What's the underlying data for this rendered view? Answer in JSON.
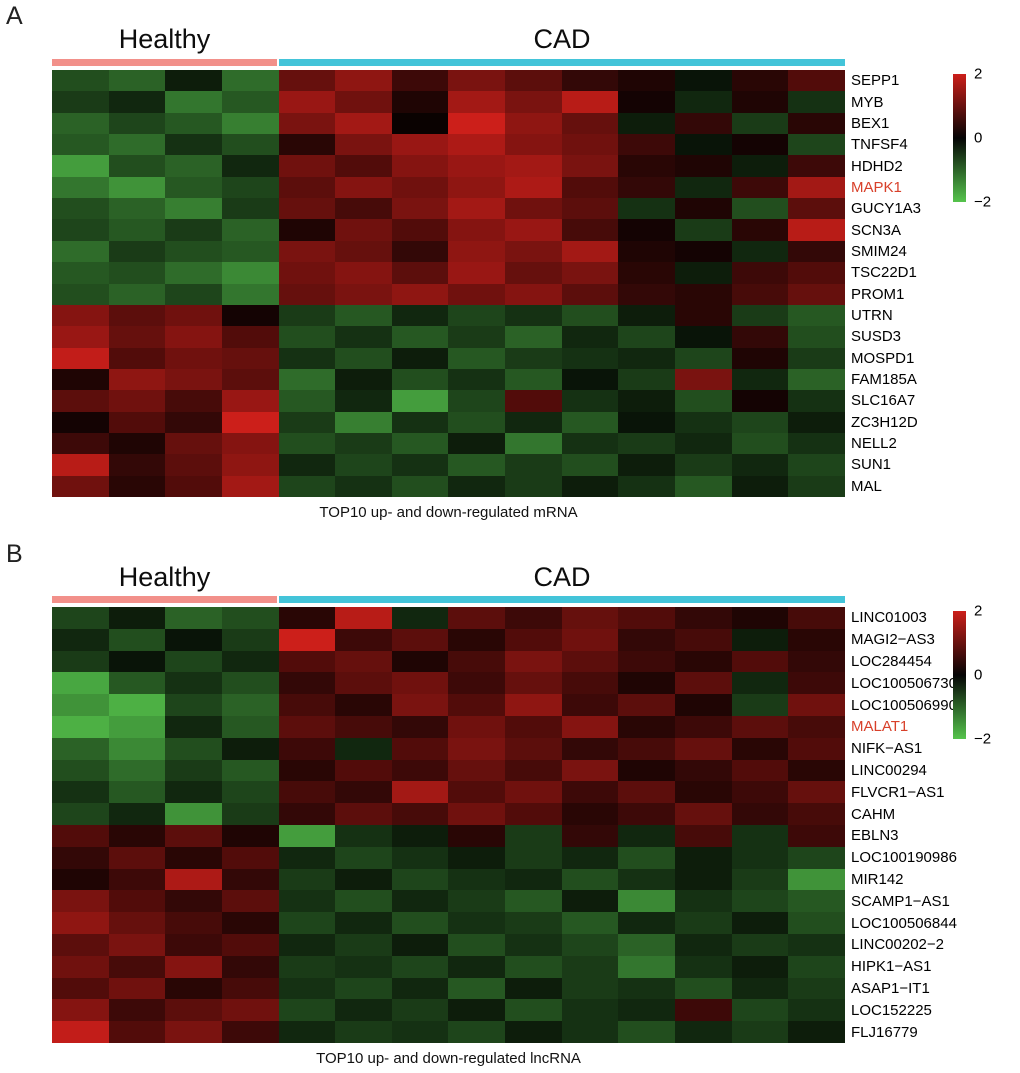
{
  "chart_data": [
    {
      "type": "heatmap",
      "panel_label": "A",
      "title": "TOP10 up- and down-regulated mRNA",
      "value_range": [
        -2,
        2
      ],
      "grid": {
        "rows": 20,
        "columns": 14
      },
      "groups": [
        {
          "name": "Healthy",
          "columns": 4,
          "bar_color": "#f2908a"
        },
        {
          "name": "CAD",
          "columns": 10,
          "bar_color": "#43c4d9"
        }
      ],
      "genes": [
        "SEPP1",
        "MYB",
        "BEX1",
        "TNFSF4",
        "HDHD2",
        "MAPK1",
        "GUCY1A3",
        "SCN3A",
        "SMIM24",
        "TSC22D1",
        "PROM1",
        "UTRN",
        "SUSD3",
        "MOSPD1",
        "FAM185A",
        "SLC16A7",
        "ZC3H12D",
        "NELL2",
        "SUN1",
        "MAL"
      ],
      "highlighted_gene": "MAPK1",
      "highlight_color": "#d8402a",
      "colorbar": {
        "ticks": [
          "2",
          "0",
          "−2"
        ],
        "high_color": "#cc1f1a",
        "mid_color": "#050505",
        "low_color": "#55c44c",
        "position": "right"
      },
      "values": [
        [
          -0.8,
          -1.0,
          -0.3,
          -1.1,
          1.0,
          1.4,
          0.6,
          1.2,
          0.9,
          0.5,
          0.3,
          -0.2,
          0.4,
          0.8
        ],
        [
          -0.6,
          -0.4,
          -1.2,
          -0.9,
          1.5,
          1.1,
          0.3,
          1.6,
          1.2,
          1.8,
          0.2,
          -0.4,
          0.3,
          -0.5
        ],
        [
          -1.0,
          -0.7,
          -0.9,
          -1.3,
          1.2,
          1.6,
          0.1,
          2.0,
          1.4,
          1.0,
          -0.3,
          0.5,
          -0.6,
          0.4
        ],
        [
          -0.9,
          -1.1,
          -0.5,
          -0.8,
          0.4,
          1.2,
          1.5,
          1.7,
          1.3,
          1.1,
          0.6,
          -0.2,
          0.2,
          -0.7
        ],
        [
          -1.6,
          -0.8,
          -1.0,
          -0.4,
          1.1,
          0.8,
          1.3,
          1.5,
          1.6,
          1.2,
          0.4,
          0.3,
          -0.3,
          0.6
        ],
        [
          -1.2,
          -1.5,
          -0.9,
          -0.7,
          0.9,
          1.3,
          1.1,
          1.4,
          1.7,
          0.8,
          0.5,
          -0.4,
          0.6,
          1.6
        ],
        [
          -0.8,
          -1.0,
          -1.3,
          -0.6,
          1.0,
          0.7,
          1.2,
          1.6,
          1.1,
          0.9,
          -0.5,
          0.3,
          -0.8,
          0.9
        ],
        [
          -0.7,
          -0.9,
          -0.6,
          -1.0,
          0.3,
          1.1,
          0.8,
          1.3,
          1.5,
          0.7,
          0.2,
          -0.6,
          0.4,
          1.8
        ],
        [
          -1.1,
          -0.6,
          -0.8,
          -0.9,
          1.2,
          1.0,
          0.5,
          1.4,
          1.2,
          1.6,
          0.3,
          0.2,
          -0.4,
          0.5
        ],
        [
          -0.9,
          -0.8,
          -1.1,
          -1.4,
          1.1,
          1.3,
          0.9,
          1.5,
          1.0,
          1.2,
          0.4,
          -0.3,
          0.6,
          0.8
        ],
        [
          -0.8,
          -1.0,
          -0.7,
          -1.2,
          1.0,
          1.2,
          1.4,
          1.1,
          1.3,
          0.9,
          0.5,
          0.4,
          0.7,
          1.0
        ],
        [
          1.3,
          0.9,
          1.1,
          0.2,
          -0.6,
          -0.9,
          -0.4,
          -0.7,
          -0.5,
          -0.8,
          -0.3,
          0.4,
          -0.6,
          -0.9
        ],
        [
          1.5,
          1.0,
          1.3,
          0.8,
          -0.8,
          -0.5,
          -0.9,
          -0.6,
          -1.0,
          -0.4,
          -0.7,
          -0.2,
          0.5,
          -0.8
        ],
        [
          1.9,
          0.8,
          1.1,
          1.0,
          -0.5,
          -0.8,
          -0.3,
          -0.9,
          -0.6,
          -0.5,
          -0.4,
          -0.7,
          0.3,
          -0.6
        ],
        [
          0.3,
          1.4,
          1.2,
          0.9,
          -1.1,
          -0.3,
          -0.8,
          -0.5,
          -0.9,
          -0.2,
          -0.6,
          1.2,
          -0.4,
          -1.0
        ],
        [
          0.9,
          1.1,
          0.7,
          1.5,
          -0.9,
          -0.4,
          -1.6,
          -0.7,
          0.8,
          -0.5,
          -0.3,
          -0.8,
          0.2,
          -0.5
        ],
        [
          0.2,
          0.8,
          0.5,
          2.0,
          -0.6,
          -1.3,
          -0.5,
          -0.8,
          -0.4,
          -0.9,
          -0.2,
          -0.5,
          -0.7,
          -0.3
        ],
        [
          0.6,
          0.3,
          1.0,
          1.3,
          -0.8,
          -0.6,
          -0.9,
          -0.3,
          -1.2,
          -0.5,
          -0.6,
          -0.4,
          -0.8,
          -0.5
        ],
        [
          1.8,
          0.5,
          0.9,
          1.4,
          -0.4,
          -0.7,
          -0.5,
          -0.9,
          -0.6,
          -0.8,
          -0.3,
          -0.6,
          -0.4,
          -0.7
        ],
        [
          1.1,
          0.4,
          0.8,
          1.6,
          -0.7,
          -0.5,
          -0.8,
          -0.4,
          -0.6,
          -0.3,
          -0.5,
          -0.9,
          -0.3,
          -0.6
        ]
      ]
    },
    {
      "type": "heatmap",
      "panel_label": "B",
      "title": "TOP10 up- and down-regulated lncRNA",
      "value_range": [
        -2,
        2
      ],
      "grid": {
        "rows": 20,
        "columns": 14
      },
      "groups": [
        {
          "name": "Healthy",
          "columns": 4,
          "bar_color": "#f2908a"
        },
        {
          "name": "CAD",
          "columns": 10,
          "bar_color": "#43c4d9"
        }
      ],
      "genes": [
        "LINC01003",
        "MAGI2−AS3",
        "LOC284454",
        "LOC100506730",
        "LOC100506990",
        "MALAT1",
        "NIFK−AS1",
        "LINC00294",
        "FLVCR1−AS1",
        "CAHM",
        "EBLN3",
        "LOC100190986",
        "MIR142",
        "SCAMP1−AS1",
        "LOC100506844",
        "LINC00202−2",
        "HIPK1−AS1",
        "ASAP1−IT1",
        "LOC152225",
        "FLJ16779"
      ],
      "highlighted_gene": "MALAT1",
      "highlight_color": "#d8402a",
      "colorbar": {
        "ticks": [
          "2",
          "0",
          "−2"
        ],
        "high_color": "#cc1f1a",
        "mid_color": "#050505",
        "low_color": "#55c44c",
        "position": "right"
      },
      "values": [
        [
          -0.7,
          -0.3,
          -1.0,
          -0.8,
          0.4,
          1.8,
          -0.4,
          0.9,
          0.6,
          1.0,
          0.8,
          0.5,
          0.3,
          0.7
        ],
        [
          -0.4,
          -0.8,
          -0.2,
          -0.6,
          2.0,
          0.6,
          0.9,
          0.4,
          0.8,
          1.1,
          0.5,
          0.7,
          -0.3,
          0.4
        ],
        [
          -0.6,
          -0.2,
          -0.7,
          -0.4,
          0.8,
          1.0,
          0.3,
          0.7,
          1.2,
          0.9,
          0.6,
          0.4,
          0.8,
          0.5
        ],
        [
          -1.7,
          -0.9,
          -0.5,
          -0.8,
          0.5,
          0.9,
          1.1,
          0.6,
          1.0,
          0.7,
          0.3,
          0.9,
          -0.4,
          0.6
        ],
        [
          -1.5,
          -1.8,
          -0.7,
          -1.0,
          0.7,
          0.4,
          1.2,
          0.8,
          1.4,
          0.6,
          0.9,
          0.3,
          -0.6,
          1.1
        ],
        [
          -1.8,
          -1.6,
          -0.4,
          -0.9,
          0.9,
          0.7,
          0.5,
          1.1,
          0.8,
          1.3,
          0.4,
          0.6,
          0.9,
          0.7
        ],
        [
          -1.0,
          -1.4,
          -0.8,
          -0.3,
          0.6,
          -0.4,
          0.8,
          1.2,
          0.9,
          0.5,
          0.7,
          1.0,
          0.4,
          0.8
        ],
        [
          -0.8,
          -1.1,
          -0.6,
          -0.9,
          0.4,
          0.8,
          0.6,
          1.0,
          0.7,
          1.2,
          0.3,
          0.5,
          0.8,
          0.4
        ],
        [
          -0.5,
          -0.9,
          -0.4,
          -0.7,
          0.7,
          0.5,
          1.6,
          0.8,
          1.1,
          0.6,
          0.9,
          0.4,
          0.6,
          1.0
        ],
        [
          -0.7,
          -0.4,
          -1.5,
          -0.6,
          0.5,
          0.9,
          0.7,
          1.1,
          0.8,
          0.4,
          0.6,
          1.0,
          0.5,
          0.7
        ],
        [
          0.8,
          0.4,
          0.9,
          0.3,
          -1.6,
          -0.5,
          -0.3,
          0.4,
          -0.6,
          0.5,
          -0.4,
          0.7,
          -0.5,
          0.6
        ],
        [
          0.5,
          0.9,
          0.4,
          0.8,
          -0.4,
          -0.7,
          -0.5,
          -0.3,
          -0.6,
          -0.4,
          -0.8,
          -0.3,
          -0.5,
          -0.7
        ],
        [
          0.3,
          0.6,
          1.7,
          0.5,
          -0.6,
          -0.3,
          -0.7,
          -0.5,
          -0.4,
          -0.8,
          -0.5,
          -0.3,
          -0.6,
          -1.5
        ],
        [
          1.2,
          0.8,
          0.5,
          0.9,
          -0.5,
          -0.8,
          -0.4,
          -0.6,
          -0.9,
          -0.3,
          -1.4,
          -0.5,
          -0.7,
          -0.9
        ],
        [
          1.4,
          1.0,
          0.7,
          0.4,
          -0.7,
          -0.4,
          -0.8,
          -0.5,
          -0.6,
          -0.9,
          -0.4,
          -0.6,
          -0.3,
          -0.8
        ],
        [
          0.9,
          1.2,
          0.6,
          0.8,
          -0.4,
          -0.6,
          -0.3,
          -0.8,
          -0.5,
          -0.7,
          -1.0,
          -0.4,
          -0.6,
          -0.5
        ],
        [
          1.1,
          0.7,
          1.3,
          0.5,
          -0.6,
          -0.5,
          -0.7,
          -0.4,
          -0.8,
          -0.6,
          -1.2,
          -0.5,
          -0.3,
          -0.7
        ],
        [
          0.8,
          1.1,
          0.4,
          0.7,
          -0.5,
          -0.7,
          -0.4,
          -0.9,
          -0.3,
          -0.6,
          -0.5,
          -0.8,
          -0.4,
          -0.6
        ],
        [
          1.3,
          0.6,
          0.9,
          1.1,
          -0.7,
          -0.4,
          -0.6,
          -0.3,
          -0.8,
          -0.5,
          -0.4,
          0.6,
          -0.7,
          -0.5
        ],
        [
          1.9,
          0.8,
          1.2,
          0.6,
          -0.4,
          -0.6,
          -0.5,
          -0.7,
          -0.3,
          -0.5,
          -0.8,
          -0.4,
          -0.6,
          -0.3
        ]
      ]
    }
  ]
}
